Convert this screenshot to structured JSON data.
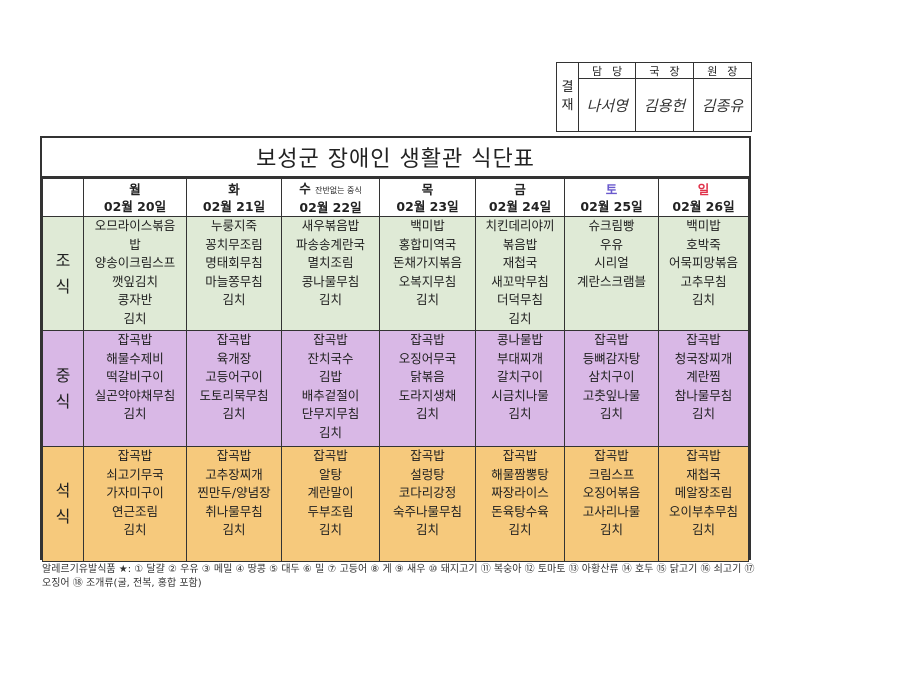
{
  "approval": {
    "label": [
      "결",
      "재"
    ],
    "headers": [
      "담당",
      "국장",
      "원장"
    ],
    "signatures": [
      "나서영",
      "김용헌",
      "김종유"
    ]
  },
  "title": "보성군 장애인 생활관 식단표",
  "days": [
    {
      "day": "월",
      "date": "02월 20일",
      "note": ""
    },
    {
      "day": "화",
      "date": "02월 21일",
      "note": ""
    },
    {
      "day": "수",
      "date": "02월 22일",
      "note": "잔반없는 중식"
    },
    {
      "day": "목",
      "date": "02월 23일",
      "note": ""
    },
    {
      "day": "금",
      "date": "02월 24일",
      "note": ""
    },
    {
      "day": "토",
      "date": "02월 25일",
      "note": ""
    },
    {
      "day": "일",
      "date": "02월 26일",
      "note": ""
    }
  ],
  "day_colors": {
    "saturday": "#6a5acd",
    "sunday": "#e0314a"
  },
  "meals": [
    {
      "label": [
        "조",
        "식"
      ],
      "color": "#dfead6",
      "menus": [
        [
          "오므라이스볶음",
          "밥",
          "양송이크림스프",
          "깻잎김치",
          "콩자반",
          "김치"
        ],
        [
          "누룽지죽",
          "꽁치무조림",
          "명태회무침",
          "마늘쫑무침",
          "김치"
        ],
        [
          "새우볶음밥",
          "파송송계란국",
          "멸치조림",
          "콩나물무침",
          "김치"
        ],
        [
          "백미밥",
          "홍합미역국",
          "돈채가지볶음",
          "오복지무침",
          "김치"
        ],
        [
          "치킨데리야끼",
          "볶음밥",
          "재첩국",
          "새꼬막무침",
          "더덕무침",
          "김치"
        ],
        [
          "슈크림빵",
          "우유",
          "시리얼",
          "계란스크램블"
        ],
        [
          "백미밥",
          "호박죽",
          "어묵피망볶음",
          "고추무침",
          "김치"
        ]
      ]
    },
    {
      "label": [
        "중",
        "식"
      ],
      "color": "#d9b8e6",
      "menus": [
        [
          "잡곡밥",
          "해물수제비",
          "떡갈비구이",
          "실곤약야채무침",
          "김치"
        ],
        [
          "잡곡밥",
          "육개장",
          "고등어구이",
          "도토리묵무침",
          "김치"
        ],
        [
          "잡곡밥",
          "잔치국수",
          "김밥",
          "배추겉절이",
          "단무지무침",
          "김치"
        ],
        [
          "잡곡밥",
          "오징어무국",
          "닭볶음",
          "도라지생채",
          "김치"
        ],
        [
          "콩나물밥",
          "부대찌개",
          "갈치구이",
          "시금치나물",
          "김치"
        ],
        [
          "잡곡밥",
          "등뼈감자탕",
          "삼치구이",
          "고춧잎나물",
          "김치"
        ],
        [
          "잡곡밥",
          "청국장찌개",
          "계란찜",
          "참나물무침",
          "김치"
        ]
      ]
    },
    {
      "label": [
        "석",
        "식"
      ],
      "color": "#f6c97c",
      "menus": [
        [
          "잡곡밥",
          "쇠고기무국",
          "가자미구이",
          "연근조림",
          "김치"
        ],
        [
          "잡곡밥",
          "고추장찌개",
          "찐만두/양념장",
          "취나물무침",
          "김치"
        ],
        [
          "잡곡밥",
          "알탕",
          "계란말이",
          "두부조림",
          "김치"
        ],
        [
          "잡곡밥",
          "설렁탕",
          "코다리강정",
          "숙주나물무침",
          "김치"
        ],
        [
          "잡곡밥",
          "해물짬뽕탕",
          "짜장라이스",
          "돈육탕수육",
          "김치"
        ],
        [
          "잡곡밥",
          "크림스프",
          "오징어볶음",
          "고사리나물",
          "김치"
        ],
        [
          "잡곡밥",
          "재첩국",
          "메알장조림",
          "오이부추무침",
          "김치"
        ]
      ]
    }
  ],
  "allergy_note": "알레르기유발식품 ★: ① 달걀 ② 우유 ③ 메밀 ④ 땅콩 ⑤ 대두 ⑥ 밀 ⑦ 고등어 ⑧ 게 ⑨ 새우 ⑩ 돼지고기 ⑪ 복숭아 ⑫ 토마토 ⑬ 아황산류 ⑭ 호두 ⑮ 닭고기 ⑯ 쇠고기 ⑰ 오징어 ⑱ 조개류(굴, 전복, 홍합 포함)"
}
